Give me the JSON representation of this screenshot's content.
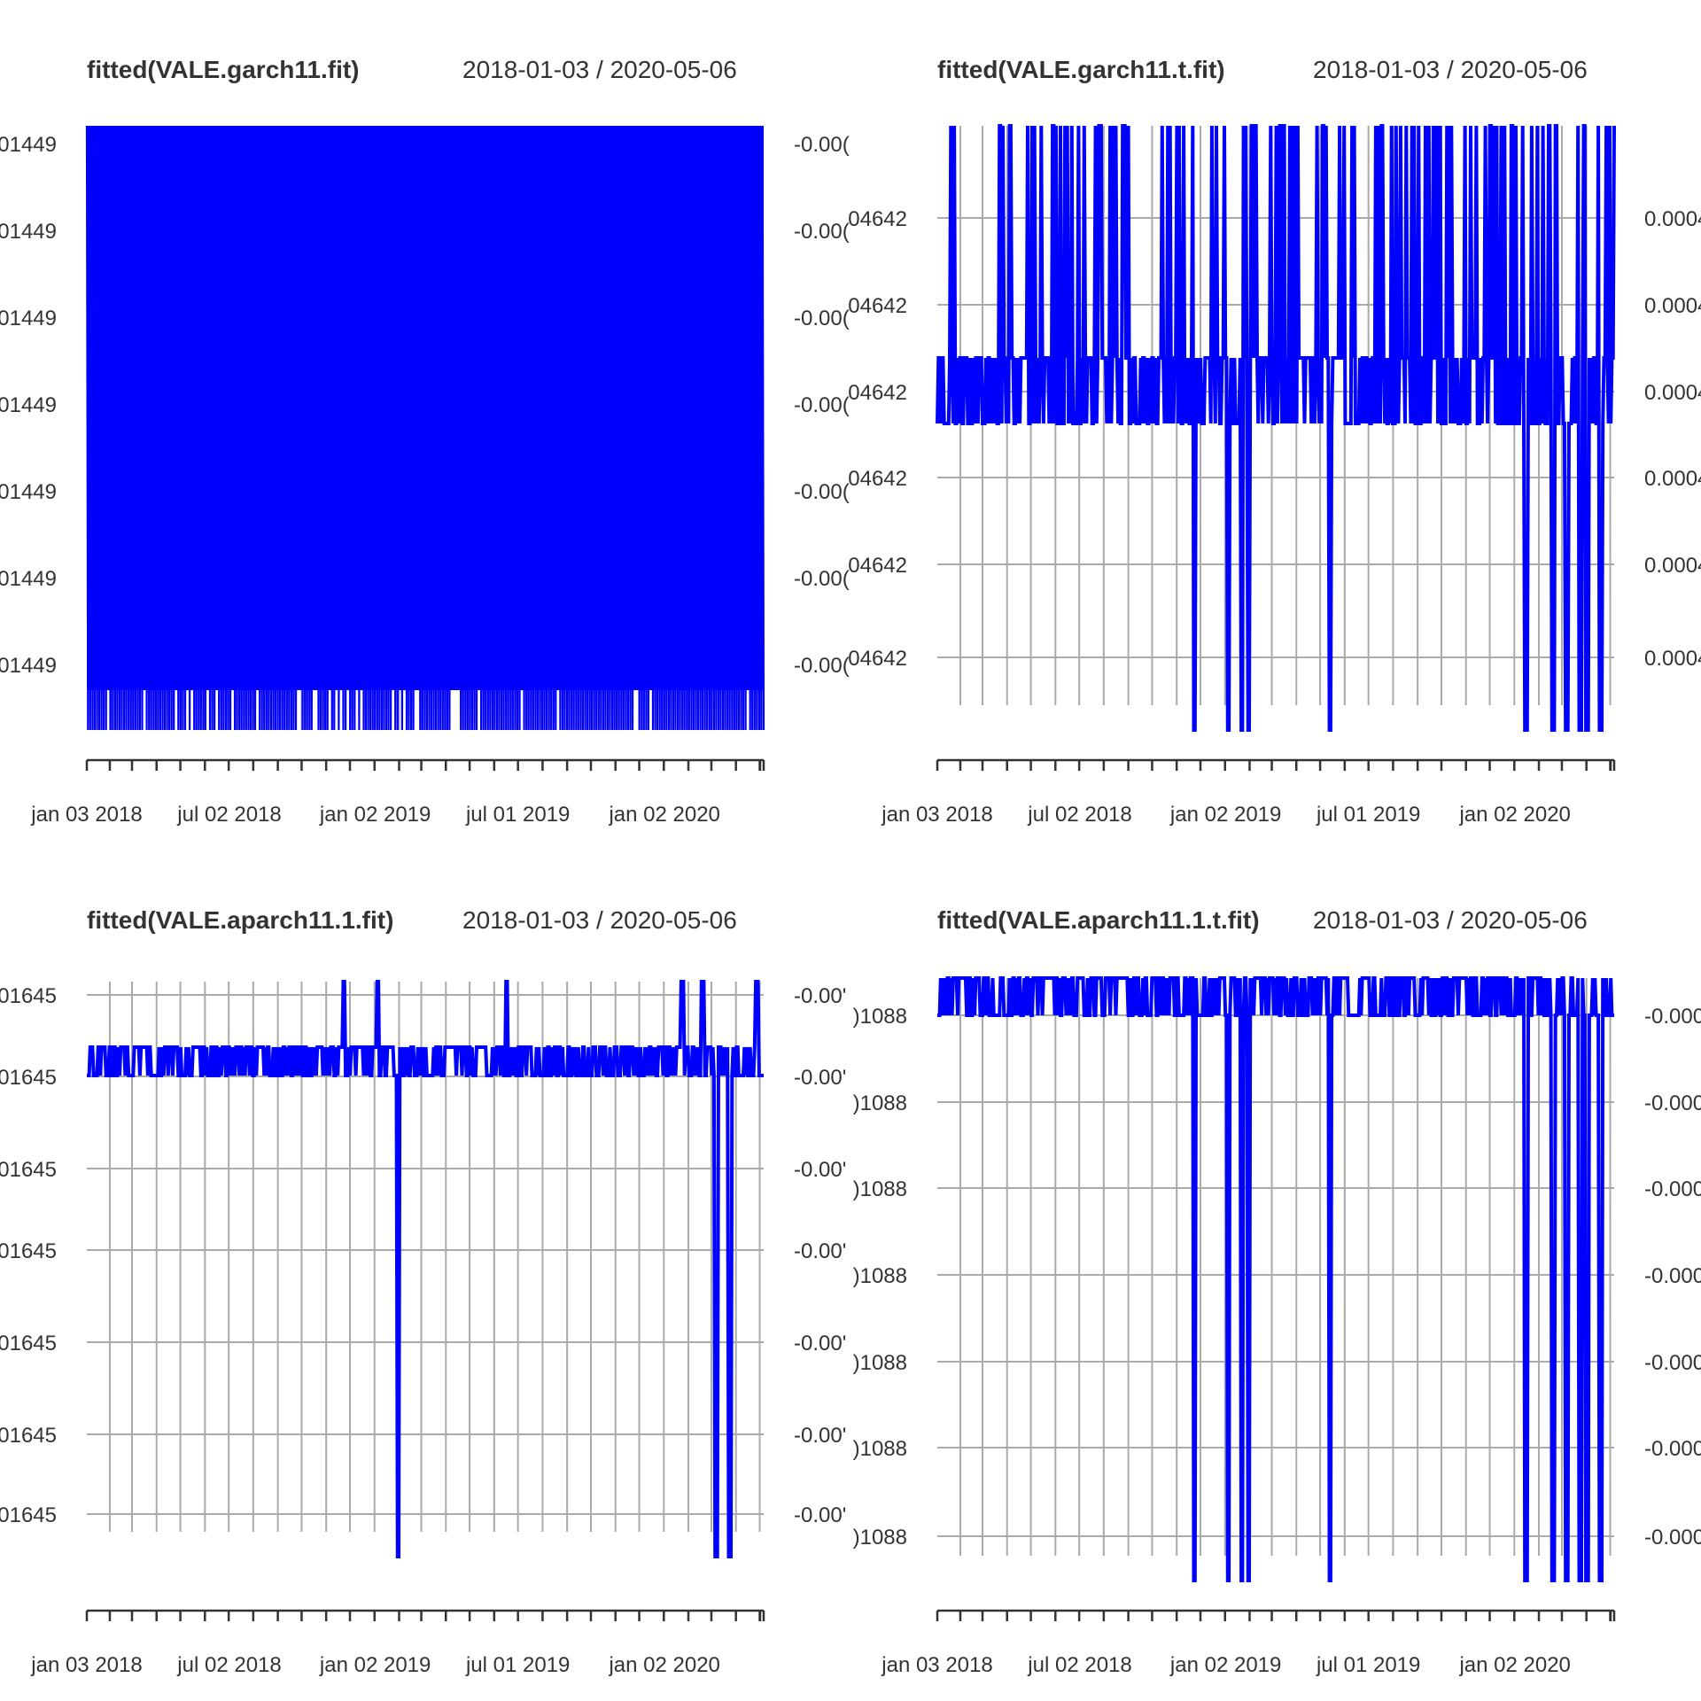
{
  "page": {
    "background": "#ffffff",
    "series_color": "#0000ff",
    "grid_color": "#aaaaaa"
  },
  "chart_data": [
    {
      "type": "line",
      "title": "fitted(VALE.garch11.fit)",
      "date_range": "2018-01-03 / 2020-05-06",
      "x_tick_labels": [
        "jan 03 2018",
        "jul 02 2018",
        "jan 02 2019",
        "jul 01 2019",
        "jan 02 2020"
      ],
      "left_tick_labels": [
        "01449",
        "01449",
        "01449",
        "01449",
        "01449",
        "01449",
        "01449"
      ],
      "right_tick_labels": [
        "-0.00(",
        "-0.00(",
        "-0.00(",
        "-0.00(",
        "-0.00(",
        "-0.00(",
        "-0.00("
      ],
      "pattern": "dense",
      "x_range": [
        "2018-01-03",
        "2020-05-06"
      ],
      "grid": true
    },
    {
      "type": "line",
      "title": "fitted(VALE.garch11.t.fit)",
      "date_range": "2018-01-03 / 2020-05-06",
      "x_tick_labels": [
        "jan 03 2018",
        "jul 02 2018",
        "jan 02 2019",
        "jul 01 2019",
        "jan 02 2020"
      ],
      "left_tick_labels": [
        "04642",
        "04642",
        "04642",
        "04642",
        "04642",
        "04642"
      ],
      "right_tick_labels": [
        "0.0004",
        "0.0004",
        "0.0004",
        "0.0004",
        "0.0004",
        "0.0004"
      ],
      "pattern": "spiky",
      "x_range": [
        "2018-01-03",
        "2020-05-06"
      ],
      "grid": true
    },
    {
      "type": "line",
      "title": "fitted(VALE.aparch11.1.fit)",
      "date_range": "2018-01-03 / 2020-05-06",
      "x_tick_labels": [
        "jan 03 2018",
        "jul 02 2018",
        "jan 02 2019",
        "jul 01 2019",
        "jan 02 2020"
      ],
      "left_tick_labels": [
        "01645",
        "01645",
        "01645",
        "01645",
        "01645",
        "01645",
        "01645"
      ],
      "right_tick_labels": [
        "-0.00'",
        "-0.00'",
        "-0.00'",
        "-0.00'",
        "-0.00'",
        "-0.00'",
        "-0.00'"
      ],
      "pattern": "band",
      "x_range": [
        "2018-01-03",
        "2020-05-06"
      ],
      "grid": true
    },
    {
      "type": "line",
      "title": "fitted(VALE.aparch11.1.t.fit)",
      "date_range": "2018-01-03 / 2020-05-06",
      "x_tick_labels": [
        "jan 03 2018",
        "jul 02 2018",
        "jan 02 2019",
        "jul 01 2019",
        "jan 02 2020"
      ],
      "left_tick_labels": [
        ")1088",
        ")1088",
        ")1088",
        ")1088",
        ")1088",
        ")1088",
        ")1088"
      ],
      "right_tick_labels": [
        "-0.000",
        "-0.000",
        "-0.000",
        "-0.000",
        "-0.000",
        "-0.000",
        "-0.000"
      ],
      "pattern": "top",
      "x_range": [
        "2018-01-03",
        "2020-05-06"
      ],
      "grid": true
    }
  ]
}
